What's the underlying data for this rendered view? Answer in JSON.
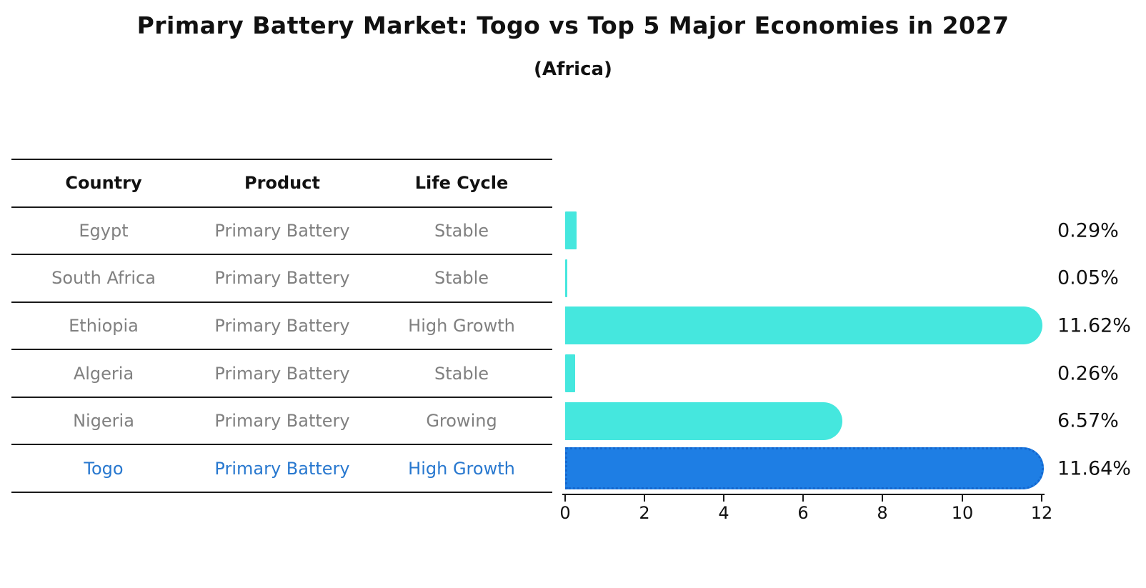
{
  "title": "Primary Battery Market: Togo vs Top 5 Major Economies in 2027",
  "subtitle": "(Africa)",
  "colors": {
    "accent_bar": "#45e7de",
    "highlight_bar": "#1e7ee4",
    "highlight_border": "#1467cf",
    "highlight_text": "#2878cf",
    "row_text": "#808080",
    "header_text": "#111111",
    "line": "#1a1a1a"
  },
  "table": {
    "headers": [
      "Country",
      "Product",
      "Life Cycle"
    ],
    "rows": [
      {
        "country": "Egypt",
        "product": "Primary Battery",
        "life_cycle": "Stable",
        "highlight": false
      },
      {
        "country": "South Africa",
        "product": "Primary Battery",
        "life_cycle": "Stable",
        "highlight": false
      },
      {
        "country": "Ethiopia",
        "product": "Primary Battery",
        "life_cycle": "High Growth",
        "highlight": false
      },
      {
        "country": "Algeria",
        "product": "Primary Battery",
        "life_cycle": "Stable",
        "highlight": false
      },
      {
        "country": "Nigeria",
        "product": "Primary Battery",
        "life_cycle": "Growing",
        "highlight": false
      },
      {
        "country": "Togo",
        "product": "Primary Battery",
        "life_cycle": "High Growth",
        "highlight": true
      }
    ]
  },
  "chart_data": {
    "type": "bar",
    "orientation": "horizontal",
    "title": "Primary Battery Market: Togo vs Top 5 Major Economies in 2027 (Africa)",
    "categories": [
      "Egypt",
      "South Africa",
      "Ethiopia",
      "Algeria",
      "Nigeria",
      "Togo"
    ],
    "values": [
      0.29,
      0.05,
      11.62,
      0.26,
      6.57,
      11.64
    ],
    "labels": [
      "0.29%",
      "0.05%",
      "11.62%",
      "0.26%",
      "6.57%",
      "11.64%"
    ],
    "highlight_index": 5,
    "x_ticks": [
      0,
      2,
      4,
      6,
      8,
      10,
      12
    ],
    "xlim": [
      0,
      12.1
    ],
    "xlabel": "",
    "ylabel": "",
    "grid": false,
    "legend": false
  }
}
